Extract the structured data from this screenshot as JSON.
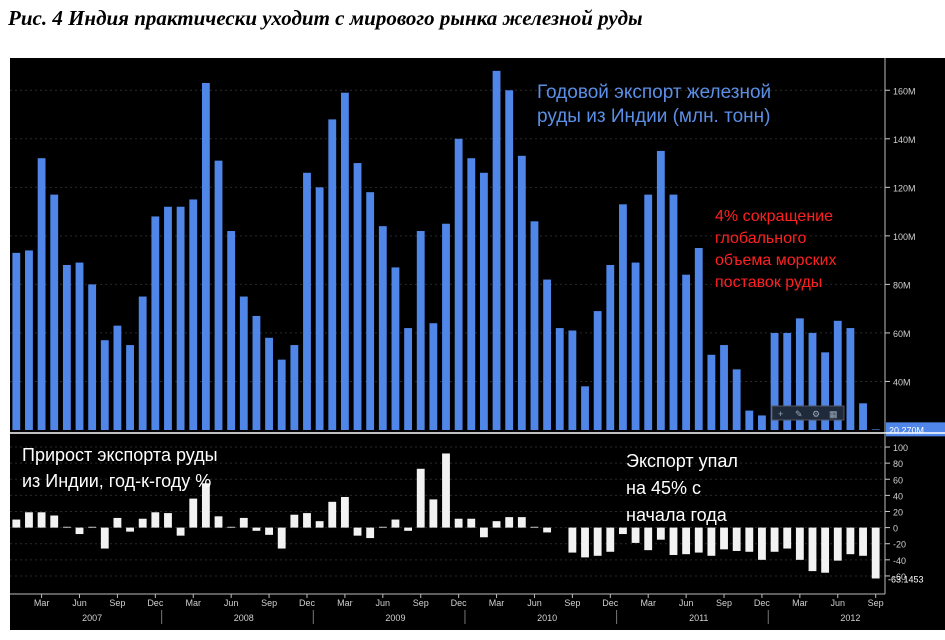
{
  "figure": {
    "title": "Рис. 4  Индия практически уходит с мирового рынка железной руды"
  },
  "chart_data": [
    {
      "type": "bar",
      "title": "Годовой экспорт железной руды из Индии (млн. тонн)",
      "title_lines": [
        "Годовой экспорт железной",
        "руды из Индии (млн. тонн)"
      ],
      "annotation_lines": [
        "4% сокращение",
        "глобального",
        "объема морских",
        "поставок руды"
      ],
      "annotation_color": "#ff2020",
      "bar_color": "#4f86e8",
      "ylim": [
        20,
        170
      ],
      "yticks": [
        40,
        60,
        80,
        100,
        120,
        140,
        160
      ],
      "ytick_labels": [
        "40M",
        "60M",
        "80M",
        "100M",
        "120M",
        "140M",
        "160M"
      ],
      "last_value_label": "20.270M",
      "values": [
        93,
        94,
        132,
        117,
        88,
        89,
        80,
        57,
        63,
        55,
        75,
        108,
        112,
        112,
        115,
        163,
        131,
        102,
        75,
        67,
        58,
        49,
        55,
        126,
        120,
        148,
        159,
        130,
        118,
        104,
        87,
        62,
        102,
        64,
        105,
        140,
        132,
        126,
        168,
        160,
        133,
        106,
        82,
        62,
        61,
        38,
        69,
        88,
        113,
        89,
        117,
        135,
        117,
        84,
        95,
        51,
        55,
        45,
        28,
        26,
        60,
        60,
        66,
        60,
        52,
        65,
        62,
        31,
        20.27
      ]
    },
    {
      "type": "bar",
      "title": "Прирост экспорта руды из Индии, год-к-году %",
      "title_lines": [
        "Прирост экспорта руды",
        "из Индии, год-к-году %"
      ],
      "annotation_lines": [
        "Экспорт упал",
        "на 45% с",
        "начала года"
      ],
      "bar_color": "#f2f2f2",
      "ylim": [
        -70,
        105
      ],
      "yticks": [
        -60,
        -40,
        -20,
        0,
        20,
        40,
        60,
        80,
        100
      ],
      "ytick_labels": [
        "-60",
        "-40",
        "-20",
        "0",
        "20",
        "40",
        "60",
        "80",
        "100"
      ],
      "last_value_label": "-63.1453",
      "values": [
        10,
        19,
        19,
        15,
        1,
        -8,
        1,
        -26,
        12,
        -5,
        11,
        19,
        18,
        -10,
        36,
        55,
        14,
        1,
        12,
        -4,
        -9,
        -26,
        16,
        18,
        8,
        32,
        38,
        -10,
        -13,
        1,
        10,
        -4,
        73,
        35,
        92,
        11,
        11,
        -12,
        8,
        13,
        13,
        1,
        -6,
        0,
        -31,
        -37,
        -35,
        -30,
        -8,
        -19,
        -28,
        -15,
        -34,
        -33,
        -31,
        -35,
        -27,
        -29,
        -30,
        -40,
        -30,
        -26,
        -40,
        -54,
        -56,
        -41,
        -33,
        -35,
        -63.1453
      ]
    }
  ],
  "x_axis": {
    "month_labels": [
      "Mar",
      "Jun",
      "Sep",
      "Dec",
      "Mar",
      "Jun",
      "Sep",
      "Dec",
      "Mar",
      "Jun",
      "Sep",
      "Dec",
      "Mar",
      "Jun",
      "Sep",
      "Dec",
      "Mar",
      "Jun",
      "Sep",
      "Dec",
      "Mar",
      "Jun",
      "Sep"
    ],
    "year_labels": [
      "2007",
      "2008",
      "2009",
      "2010",
      "2011",
      "2012"
    ]
  },
  "toolbar_icons": [
    "plus-icon",
    "pencil-icon",
    "settings-icon",
    "grid-icon"
  ]
}
